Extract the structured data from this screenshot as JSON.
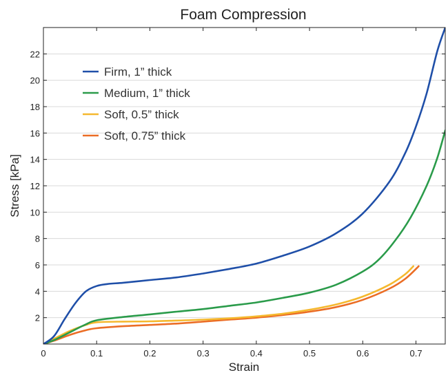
{
  "chart_data": {
    "type": "line",
    "title": "Foam Compression",
    "xlabel": "Strain",
    "ylabel": "Stress [kPa]",
    "xlim": [
      0,
      0.755
    ],
    "ylim": [
      0,
      24
    ],
    "x_ticks": [
      0,
      0.1,
      0.2,
      0.3,
      0.4,
      0.5,
      0.6,
      0.7
    ],
    "x_tick_labels": [
      "0",
      "0.1",
      "0.2",
      "0.3",
      "0.4",
      "0.5",
      "0.6",
      "0.7"
    ],
    "y_ticks": [
      2,
      4,
      6,
      8,
      10,
      12,
      14,
      16,
      18,
      20,
      22
    ],
    "y_tick_labels": [
      "2",
      "4",
      "6",
      "8",
      "10",
      "12",
      "14",
      "16",
      "18",
      "20",
      "22"
    ],
    "grid": "horizontal",
    "legend_position": "top-left",
    "series": [
      {
        "name": "Firm, 1” thick",
        "color": "#1f4fa8",
        "x": [
          0,
          0.02,
          0.04,
          0.06,
          0.08,
          0.1,
          0.12,
          0.15,
          0.2,
          0.25,
          0.3,
          0.35,
          0.4,
          0.45,
          0.5,
          0.55,
          0.6,
          0.65,
          0.68,
          0.7,
          0.72,
          0.74,
          0.755
        ],
        "y": [
          0,
          0.6,
          1.9,
          3.1,
          4.0,
          4.4,
          4.55,
          4.65,
          4.85,
          5.05,
          5.35,
          5.7,
          6.1,
          6.7,
          7.4,
          8.4,
          9.9,
          12.3,
          14.5,
          16.5,
          19.0,
          22.2,
          24.0
        ]
      },
      {
        "name": "Medium, 1” thick",
        "color": "#2a9b4a",
        "x": [
          0,
          0.02,
          0.05,
          0.08,
          0.1,
          0.15,
          0.2,
          0.25,
          0.3,
          0.35,
          0.4,
          0.45,
          0.5,
          0.55,
          0.6,
          0.63,
          0.66,
          0.69,
          0.72,
          0.74,
          0.755
        ],
        "y": [
          0,
          0.3,
          0.9,
          1.5,
          1.8,
          2.05,
          2.25,
          2.45,
          2.65,
          2.9,
          3.15,
          3.5,
          3.9,
          4.5,
          5.5,
          6.4,
          7.8,
          9.6,
          12.0,
          14.1,
          16.2
        ]
      },
      {
        "name": "Soft, 0.5” thick",
        "color": "#f5b82e",
        "x": [
          0,
          0.02,
          0.05,
          0.08,
          0.1,
          0.15,
          0.2,
          0.25,
          0.3,
          0.35,
          0.4,
          0.45,
          0.5,
          0.55,
          0.6,
          0.65,
          0.68,
          0.695
        ],
        "y": [
          0,
          0.4,
          1.0,
          1.45,
          1.65,
          1.7,
          1.72,
          1.78,
          1.85,
          1.95,
          2.1,
          2.3,
          2.6,
          3.0,
          3.6,
          4.5,
          5.3,
          5.9
        ]
      },
      {
        "name": "Soft, 0.75” thick",
        "color": "#eb6d25",
        "x": [
          0,
          0.02,
          0.05,
          0.08,
          0.1,
          0.15,
          0.2,
          0.25,
          0.3,
          0.35,
          0.4,
          0.45,
          0.5,
          0.55,
          0.6,
          0.65,
          0.68,
          0.705
        ],
        "y": [
          0,
          0.25,
          0.7,
          1.05,
          1.2,
          1.35,
          1.45,
          1.55,
          1.7,
          1.85,
          2.0,
          2.2,
          2.45,
          2.8,
          3.35,
          4.2,
          4.95,
          5.9
        ]
      }
    ]
  }
}
